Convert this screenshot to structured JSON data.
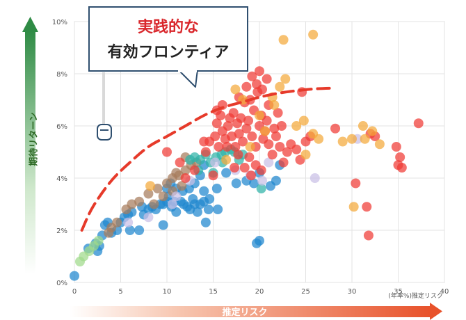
{
  "chart_data": {
    "type": "scatter",
    "title": "",
    "xlabel": "推定リスク",
    "ylabel": "期待リターン",
    "x_unit_label": "(年率%)推定リスク",
    "xlim": [
      0,
      40
    ],
    "ylim": [
      0,
      10
    ],
    "x_ticks": [
      "0",
      "5",
      "10",
      "15",
      "20",
      "25",
      "30",
      "35",
      "40"
    ],
    "y_ticks": [
      "0%",
      "2%",
      "4%",
      "6%",
      "8%",
      "10%"
    ],
    "grid": true,
    "annotation": {
      "line1": "実践的な",
      "line2": "有効フロンティア"
    },
    "frontier": {
      "style": "dashed",
      "color": "#e63a2a",
      "x": [
        0.8,
        2,
        4,
        6,
        8,
        10,
        12,
        14,
        16,
        18,
        20,
        22,
        24,
        26,
        28
      ],
      "y": [
        2.0,
        2.9,
        3.9,
        4.6,
        5.2,
        5.6,
        6.0,
        6.4,
        6.7,
        6.9,
        7.1,
        7.25,
        7.35,
        7.42,
        7.45
      ]
    },
    "series": [
      {
        "color": "#1f86cf",
        "points": [
          [
            0,
            0.25
          ],
          [
            1.5,
            1.3
          ],
          [
            2.3,
            1.5
          ],
          [
            2.7,
            1.4
          ],
          [
            3,
            1.8
          ],
          [
            3.3,
            2.2
          ],
          [
            3.6,
            2.3
          ],
          [
            4,
            1.9
          ],
          [
            4.6,
            2.0
          ],
          [
            5,
            2.3
          ],
          [
            5.4,
            2.5
          ],
          [
            6,
            2.0
          ],
          [
            6.2,
            2.7
          ],
          [
            7,
            2.0
          ],
          [
            7.5,
            2.6
          ],
          [
            8,
            2.8
          ],
          [
            8.4,
            2.9
          ],
          [
            8.8,
            2.8
          ],
          [
            9.3,
            3.0
          ],
          [
            9.6,
            3.0
          ],
          [
            10,
            3.1
          ],
          [
            10.2,
            3.3
          ],
          [
            10.5,
            2.9
          ],
          [
            10.8,
            3.1
          ],
          [
            11,
            2.7
          ],
          [
            11.5,
            3.1
          ],
          [
            11.8,
            3.0
          ],
          [
            12.2,
            2.9
          ],
          [
            12.5,
            2.8
          ],
          [
            13,
            3.0
          ],
          [
            13.3,
            2.7
          ],
          [
            13.6,
            3.0
          ],
          [
            14,
            3.1
          ],
          [
            14.5,
            2.8
          ],
          [
            14.2,
            2.3
          ],
          [
            15.5,
            2.8
          ],
          [
            10,
            3.6
          ],
          [
            10.4,
            3.8
          ],
          [
            11,
            3.6
          ],
          [
            11.7,
            3.5
          ],
          [
            12.4,
            3.6
          ],
          [
            13,
            3.8
          ],
          [
            13.6,
            4.1
          ],
          [
            14,
            4.5
          ],
          [
            14.6,
            3.2
          ],
          [
            15.4,
            3.6
          ],
          [
            16.4,
            4.2
          ],
          [
            17.5,
            3.8
          ],
          [
            18.6,
            3.9
          ],
          [
            19.4,
            3.8
          ],
          [
            20,
            4.2
          ],
          [
            21.8,
            3.9
          ],
          [
            21.2,
            3.7
          ],
          [
            22.2,
            4.5
          ],
          [
            19.7,
            1.5
          ],
          [
            20,
            1.6
          ],
          [
            14,
            3.5
          ],
          [
            12.8,
            3.2
          ],
          [
            9.6,
            2.2
          ],
          [
            7.3,
            2.9
          ],
          [
            5.8,
            2.6
          ],
          [
            2.5,
            1.2
          ]
        ]
      },
      {
        "color": "#a67c5b",
        "points": [
          [
            4,
            2.1
          ],
          [
            5.6,
            2.8
          ],
          [
            6.2,
            3.0
          ],
          [
            7,
            3.1
          ],
          [
            8,
            3.4
          ],
          [
            9,
            3.6
          ],
          [
            10,
            3.8
          ],
          [
            10.6,
            4.0
          ],
          [
            11.3,
            4.1
          ],
          [
            12,
            4.3
          ],
          [
            12.6,
            4.5
          ],
          [
            13.2,
            4.6
          ],
          [
            10.6,
            3.5
          ],
          [
            11.6,
            3.7
          ],
          [
            9.6,
            3.3
          ],
          [
            8.6,
            3.0
          ],
          [
            4.6,
            2.3
          ],
          [
            3.7,
            1.9
          ],
          [
            12,
            4.8
          ],
          [
            11,
            4.2
          ]
        ]
      },
      {
        "color": "#2fb3a8",
        "points": [
          [
            12.5,
            4.7
          ],
          [
            13,
            4.8
          ],
          [
            13.6,
            4.7
          ],
          [
            14.2,
            4.9
          ],
          [
            14.7,
            4.6
          ],
          [
            15.3,
            4.8
          ],
          [
            15.9,
            4.9
          ],
          [
            16.3,
            5.0
          ],
          [
            16.9,
            5.1
          ],
          [
            17.3,
            5.0
          ],
          [
            17.8,
            4.7
          ],
          [
            18.2,
            4.9
          ],
          [
            15,
            4.2
          ],
          [
            16,
            4.6
          ],
          [
            13.4,
            4.3
          ],
          [
            20.2,
            3.6
          ]
        ]
      },
      {
        "color": "#c9bfe6",
        "points": [
          [
            8,
            2.5
          ],
          [
            11,
            3.3
          ],
          [
            12.5,
            3.9
          ],
          [
            15.2,
            4.6
          ],
          [
            17.4,
            4.3
          ],
          [
            19,
            4.1
          ],
          [
            20.3,
            3.9
          ],
          [
            26,
            4.0
          ],
          [
            30.6,
            5.5
          ],
          [
            21,
            4.6
          ],
          [
            10.6,
            3.0
          ],
          [
            5.8,
            2.3
          ]
        ]
      },
      {
        "color": "#f03a35",
        "points": [
          [
            10,
            5.0
          ],
          [
            11.4,
            4.6
          ],
          [
            12,
            4.0
          ],
          [
            13,
            4.3
          ],
          [
            14.2,
            5.0
          ],
          [
            14.6,
            5.4
          ],
          [
            15.2,
            5.6
          ],
          [
            15.4,
            6.1
          ],
          [
            15.6,
            5.2
          ],
          [
            15.8,
            6.4
          ],
          [
            16,
            5.8
          ],
          [
            16.3,
            5.5
          ],
          [
            16.6,
            6.0
          ],
          [
            16.8,
            6.3
          ],
          [
            17,
            5.6
          ],
          [
            17.2,
            6.5
          ],
          [
            17.4,
            5.2
          ],
          [
            17.6,
            6.1
          ],
          [
            17.8,
            5.7
          ],
          [
            18,
            6.3
          ],
          [
            18.2,
            5.4
          ],
          [
            18.4,
            6.9
          ],
          [
            18.6,
            5.9
          ],
          [
            18.8,
            6.2
          ],
          [
            19,
            7.0
          ],
          [
            19.2,
            5.6
          ],
          [
            19.4,
            6.6
          ],
          [
            19.6,
            5.2
          ],
          [
            19.8,
            7.3
          ],
          [
            20,
            6.0
          ],
          [
            20.2,
            6.4
          ],
          [
            20.4,
            5.5
          ],
          [
            20.6,
            5.8
          ],
          [
            20.8,
            6.2
          ],
          [
            21,
            5.3
          ],
          [
            21.4,
            4.9
          ],
          [
            21.8,
            5.6
          ],
          [
            22.2,
            5.2
          ],
          [
            22.6,
            4.6
          ],
          [
            23,
            5.0
          ],
          [
            23.4,
            5.3
          ],
          [
            24,
            5.1
          ],
          [
            24.4,
            4.7
          ],
          [
            25,
            5.4
          ],
          [
            25.5,
            5.6
          ],
          [
            19.2,
            7.9
          ],
          [
            20,
            8.1
          ],
          [
            20.8,
            7.8
          ],
          [
            18.6,
            7.5
          ],
          [
            17.8,
            7.1
          ],
          [
            16,
            6.8
          ],
          [
            15.4,
            6.6
          ],
          [
            19.7,
            7.6
          ],
          [
            20.3,
            7.4
          ],
          [
            21,
            6.8
          ],
          [
            22,
            6.5
          ],
          [
            22.4,
            6.0
          ],
          [
            21.6,
            5.9
          ],
          [
            20.2,
            4.3
          ],
          [
            19.6,
            4.5
          ],
          [
            18.4,
            4.4
          ],
          [
            18.9,
            4.8
          ],
          [
            17.3,
            4.4
          ],
          [
            24.6,
            7.3
          ],
          [
            28.2,
            5.9
          ],
          [
            30.4,
            3.8
          ],
          [
            31.6,
            2.9
          ],
          [
            31.8,
            1.8
          ],
          [
            32,
            5.7
          ],
          [
            32.5,
            5.6
          ],
          [
            34.8,
            5.2
          ],
          [
            35,
            4.5
          ],
          [
            35.2,
            4.8
          ],
          [
            35.4,
            4.4
          ],
          [
            37.2,
            6.1
          ],
          [
            16.5,
            5.2
          ],
          [
            17.7,
            4.9
          ],
          [
            19.1,
            4.1
          ],
          [
            15,
            4.1
          ],
          [
            14,
            5.4
          ]
        ]
      },
      {
        "color": "#f4a93a",
        "points": [
          [
            17.4,
            7.4
          ],
          [
            18.2,
            7.0
          ],
          [
            20,
            6.4
          ],
          [
            21.6,
            6.8
          ],
          [
            22.6,
            9.3
          ],
          [
            22.2,
            7.5
          ],
          [
            22.8,
            7.8
          ],
          [
            25.8,
            9.5
          ],
          [
            24.8,
            6.2
          ],
          [
            25.8,
            5.7
          ],
          [
            25,
            4.9
          ],
          [
            26.4,
            5.5
          ],
          [
            29,
            5.4
          ],
          [
            30,
            5.5
          ],
          [
            31.2,
            6.0
          ],
          [
            32.2,
            5.8
          ],
          [
            31.4,
            5.5
          ],
          [
            33,
            5.3
          ],
          [
            30.2,
            2.9
          ],
          [
            8.2,
            3.7
          ],
          [
            19,
            5.2
          ],
          [
            20.6,
            5.8
          ],
          [
            16.4,
            4.7
          ],
          [
            21.4,
            7.1
          ],
          [
            24,
            6.0
          ]
        ]
      },
      {
        "color": "#9fd98a",
        "points": [
          [
            0.6,
            0.8
          ],
          [
            1.0,
            1.0
          ],
          [
            1.6,
            1.2
          ],
          [
            2.1,
            1.4
          ],
          [
            2.6,
            1.6
          ]
        ]
      }
    ]
  },
  "colors": {
    "y_arrow_top": "#2f8b45",
    "x_arrow_right": "#e8522b",
    "callout_border": "#2f4f6f",
    "slider": "#2f4f6f"
  }
}
